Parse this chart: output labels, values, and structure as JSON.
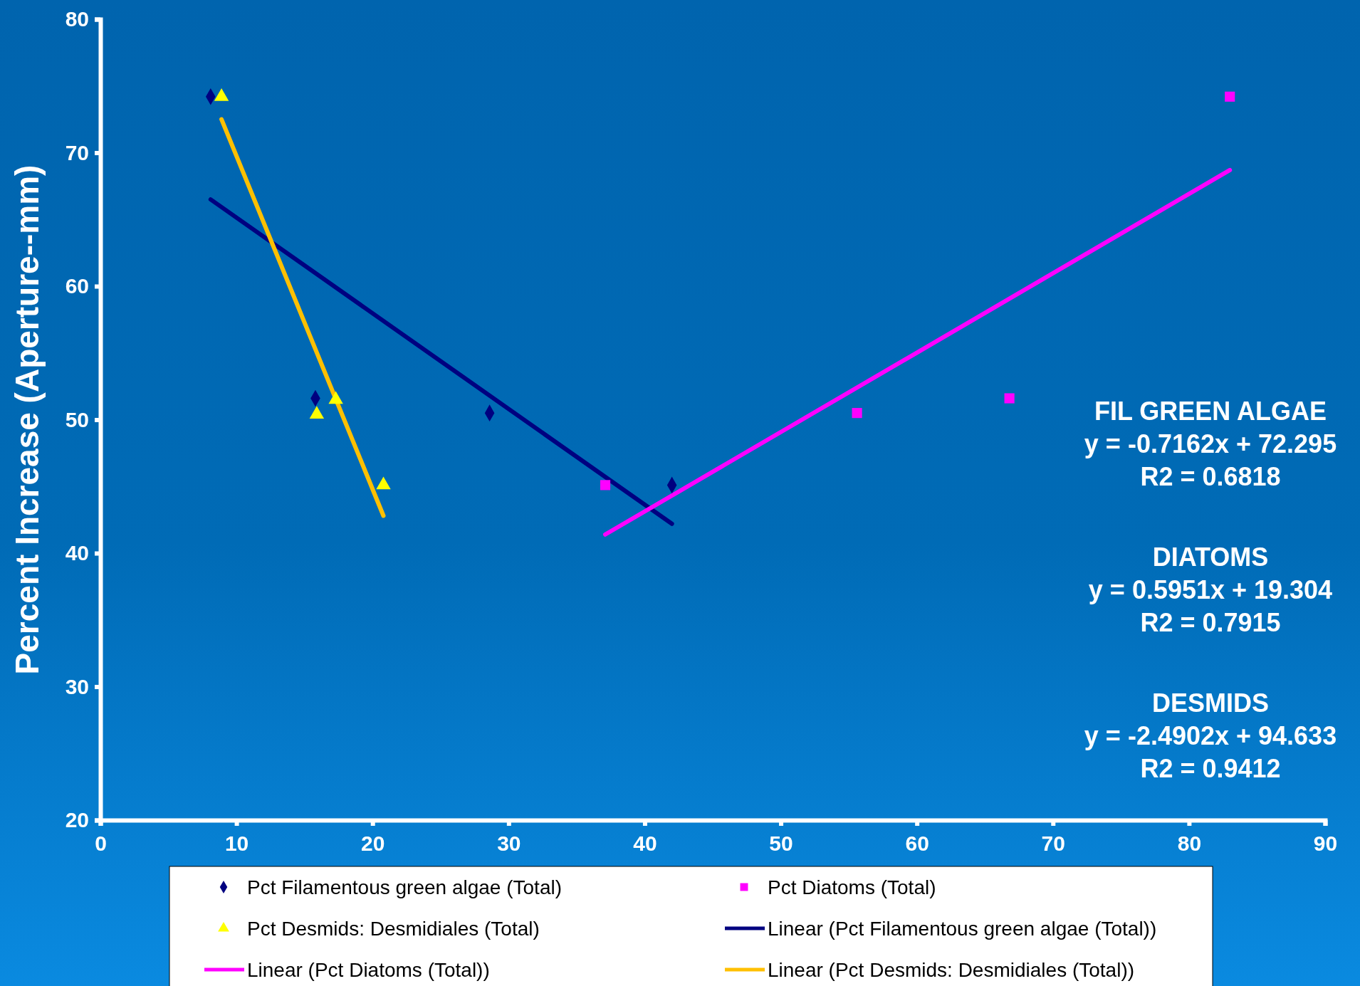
{
  "chart_data": {
    "type": "scatter",
    "ylabel": "Percent Increase (Aperture--mm)",
    "xlim": [
      0,
      90
    ],
    "xticks": [
      0,
      10,
      20,
      30,
      40,
      50,
      60,
      70,
      80,
      90
    ],
    "ylim": [
      20,
      80
    ],
    "yticks": [
      20,
      30,
      40,
      50,
      60,
      70,
      80
    ],
    "grid": false,
    "legend": "bottom",
    "series": [
      {
        "name": "Pct Filamentous green algae (Total)",
        "marker": "diamond",
        "color": "#000080",
        "x": [
          8.1,
          15.8,
          28.6,
          42.0
        ],
        "values": [
          74.2,
          51.6,
          50.5,
          45.1
        ]
      },
      {
        "name": "Pct Diatoms (Total)",
        "marker": "square",
        "color": "#ff00ff",
        "x": [
          37.1,
          55.6,
          66.8,
          83.0
        ],
        "values": [
          45.1,
          50.5,
          51.6,
          74.2
        ]
      },
      {
        "name": "Pct Desmids: Desmidiales (Total)",
        "marker": "triangle",
        "color": "#ffff00",
        "x": [
          8.9,
          15.9,
          17.3,
          20.8
        ],
        "values": [
          74.2,
          50.4,
          51.5,
          45.1
        ]
      },
      {
        "name": "Linear (Pct Filamentous green algae (Total))",
        "type": "line",
        "marker": "none",
        "color": "#000080",
        "x": [
          8.1,
          42.0
        ],
        "values": [
          66.5,
          42.2
        ]
      },
      {
        "name": "Linear (Pct Diatoms (Total))",
        "type": "line",
        "marker": "none",
        "color": "#ff00ff",
        "x": [
          37.1,
          83.0
        ],
        "values": [
          41.4,
          68.7
        ]
      },
      {
        "name": "Linear (Pct Desmids: Desmidiales (Total))",
        "type": "line",
        "marker": "none",
        "color": "#ffc000",
        "x": [
          8.9,
          20.8
        ],
        "values": [
          72.5,
          42.8
        ]
      }
    ],
    "annotations": [
      "FIL GREEN ALGAE",
      "y = -0.7162x + 72.295",
      "R2 = 0.6818",
      "DIATOMS",
      "y = 0.5951x + 19.304",
      "R2 = 0.7915",
      "DESMIDS",
      "y = -2.4902x + 94.633",
      "R2 = 0.9412"
    ]
  }
}
